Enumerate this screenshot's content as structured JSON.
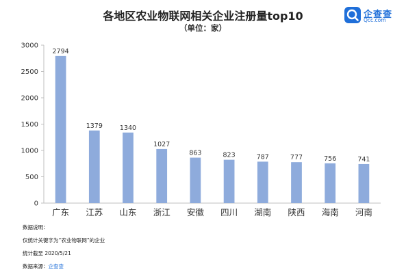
{
  "header": {
    "title": "各地区农业物联网相关企业注册量top10",
    "subtitle": "（单位：家）"
  },
  "logo": {
    "name": "企查查",
    "domain": "Qcc.com",
    "icon": "magnifier-logo-icon"
  },
  "notes": {
    "heading": "数据说明：",
    "scope": "仅统计关键字为“农业物联网”的企业",
    "cutoff": "统计截至 2020/5/21",
    "source_label": "数据来源：",
    "source_value": "企查查"
  },
  "colors": {
    "bar": "#8eabdc",
    "axis": "#bfbfbf",
    "brand": "#1f6fd9"
  },
  "chart_data": {
    "type": "bar",
    "categories": [
      "广东",
      "江苏",
      "山东",
      "浙江",
      "安徽",
      "四川",
      "湖南",
      "陕西",
      "海南",
      "河南"
    ],
    "values": [
      2794,
      1379,
      1340,
      1027,
      863,
      823,
      787,
      777,
      756,
      741
    ],
    "title": "各地区农业物联网相关企业注册量top10",
    "subtitle": "（单位：家）",
    "ylim": [
      0,
      3000
    ],
    "yticks": [
      0,
      500,
      1000,
      1500,
      2000,
      2500,
      3000
    ],
    "grid": false,
    "legend": "none"
  }
}
